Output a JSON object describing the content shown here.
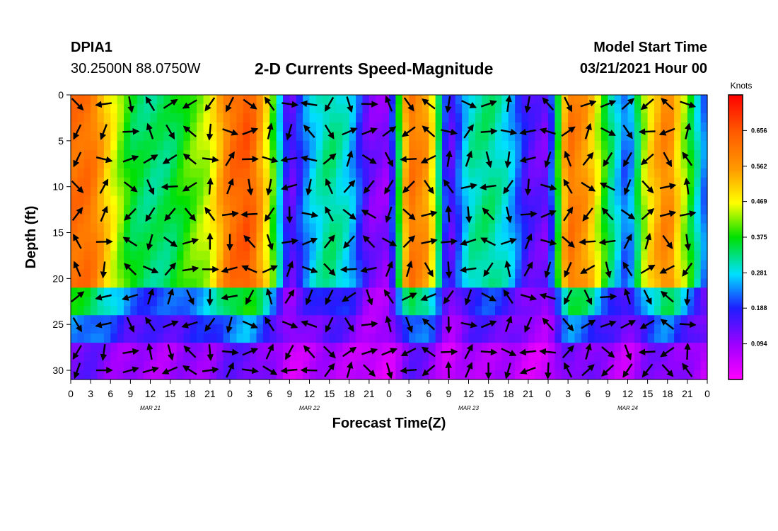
{
  "header": {
    "station": "DPIA1",
    "coords": "30.2500N 88.0750W",
    "title": "2-D Currents Speed-Magnitude",
    "model_start_label": "Model Start Time",
    "model_start_value": "03/21/2021 Hour 00"
  },
  "chart_data": {
    "type": "heatmap",
    "title": "2-D Currents Speed-Magnitude",
    "xlabel": "Forecast Time(Z)",
    "ylabel": "Depth (ft)",
    "x_ticks": [
      "0",
      "3",
      "6",
      "9",
      "12",
      "15",
      "18",
      "21",
      "0",
      "3",
      "6",
      "9",
      "12",
      "15",
      "18",
      "21",
      "0",
      "3",
      "6",
      "9",
      "12",
      "15",
      "18",
      "21",
      "0",
      "3",
      "6",
      "9",
      "12",
      "15",
      "18",
      "21",
      "0"
    ],
    "day_labels": [
      "MAR 21",
      "MAR 22",
      "MAR 23",
      "MAR 24"
    ],
    "y_ticks": [
      "0",
      "5",
      "10",
      "15",
      "20",
      "25",
      "30"
    ],
    "xlim": [
      0,
      96
    ],
    "ylim": [
      0,
      31
    ],
    "colorbar": {
      "label": "Knots",
      "ticks": [
        "0.656",
        "0.562",
        "0.469",
        "0.375",
        "0.281",
        "0.188",
        "0.094"
      ],
      "tick_values": [
        0.656,
        0.562,
        0.469,
        0.375,
        0.281,
        0.188,
        0.094
      ],
      "range": [
        0.0,
        0.75
      ]
    },
    "speed_profile_hours": [
      0,
      3,
      6,
      9,
      12,
      15,
      18,
      21,
      24,
      27,
      30,
      33,
      36,
      39,
      42,
      45,
      48,
      51,
      54,
      57,
      60,
      63,
      66,
      69,
      72,
      75,
      78,
      81,
      84,
      87,
      90,
      93,
      96
    ],
    "speed_profile_knots": [
      0.62,
      0.62,
      0.48,
      0.36,
      0.33,
      0.34,
      0.4,
      0.45,
      0.62,
      0.66,
      0.45,
      0.12,
      0.26,
      0.33,
      0.28,
      0.12,
      0.1,
      0.62,
      0.55,
      0.12,
      0.3,
      0.33,
      0.28,
      0.15,
      0.12,
      0.62,
      0.55,
      0.35,
      0.2,
      0.48,
      0.6,
      0.4,
      0.2
    ],
    "vector_columns_hours": [
      1,
      5,
      9,
      12,
      15,
      18,
      21,
      24,
      27,
      30,
      33,
      36,
      39,
      42,
      45,
      48,
      51,
      54,
      57,
      60,
      63,
      66,
      69,
      72,
      75,
      78,
      81,
      84,
      87,
      90,
      93,
      96
    ],
    "vector_rows_ft": [
      1,
      4,
      7,
      10,
      13,
      16,
      19,
      22,
      25,
      28,
      30
    ]
  }
}
